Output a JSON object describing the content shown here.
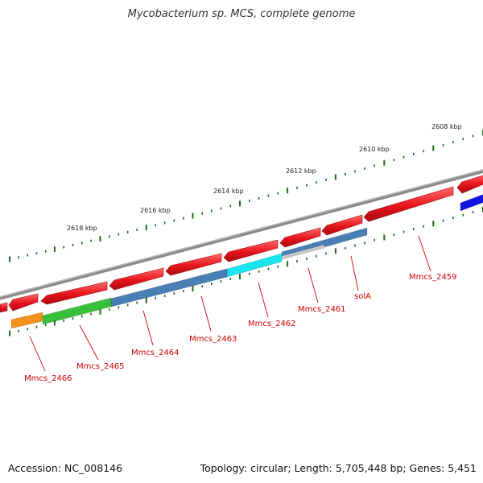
{
  "title": "Mycobacterium sp. MCS, complete genome",
  "footer": {
    "accession": "Accession: NC_008146",
    "summary": "Topology: circular; Length: 5,705,448 bp; Genes: 5,451"
  },
  "colors": {
    "backbone": "#7a7a7a",
    "tick": "#1e6b1e",
    "cds": "#e8141c",
    "label": "#cc0000"
  },
  "scale": {
    "unit": "kbp",
    "labels": [
      "2608 kbp",
      "2610 kbp",
      "2612 kbp",
      "2614 kbp",
      "2616 kbp",
      "2618 kbp"
    ]
  },
  "gene_labels": [
    "Mmcs_2459",
    "solA",
    "Mmcs_2461",
    "Mmcs_2462",
    "Mmcs_2463",
    "Mmcs_2464",
    "Mmcs_2465",
    "Mmcs_2466"
  ],
  "feature_colors": [
    "#4a7fb5",
    "#4a7fb5",
    "#4a3a80",
    "#19e6ef",
    "#4a7fb5",
    "#4a7fb5",
    "#39c03a",
    "#f5921e",
    "#1414e0"
  ]
}
